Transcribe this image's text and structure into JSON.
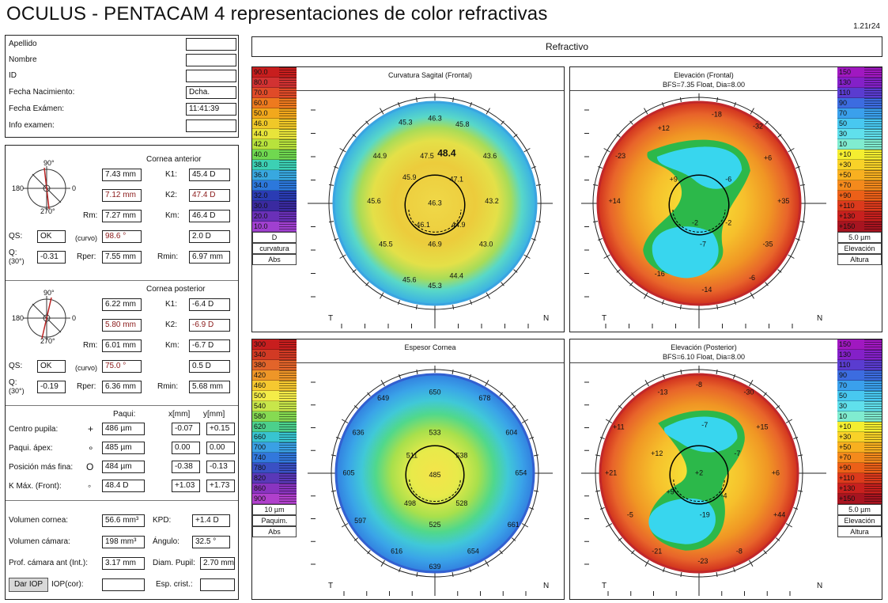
{
  "header": {
    "title": "OCULUS - PENTACAM  4 representaciones de color refractivas",
    "version": "1.21r24"
  },
  "patient": {
    "rows": [
      {
        "label": "Apellido",
        "value": ""
      },
      {
        "label": "Nombre",
        "value": ""
      },
      {
        "label": "ID",
        "value": ""
      },
      {
        "label": "Fecha Nacimiento:",
        "value": "Dcha."
      },
      {
        "label": "Fecha Exámen:",
        "value": "11:41:39"
      },
      {
        "label": "Info examen:",
        "value": ""
      }
    ]
  },
  "cornea_anterior": {
    "title": "Cornea anterior",
    "r1": "7.43 mm",
    "k1_label": "K1:",
    "k1": "45.4 D",
    "r2": "7.12 mm",
    "k2_label": "K2:",
    "k2": "47.4 D",
    "rm_label": "Rm:",
    "rm": "7.27 mm",
    "km_label": "Km:",
    "km": "46.4 D",
    "qs_label": "QS:",
    "qs": "OK",
    "curvo_label": "(curvo)",
    "axis": "98.6 °",
    "astig": "2.0 D",
    "q_label": "Q:",
    "q30_label": "(30°)",
    "q": "-0.31",
    "rper_label": "Rper:",
    "rper": "7.55 mm",
    "rmin_label": "Rmin:",
    "rmin": "6.97 mm"
  },
  "cornea_posterior": {
    "title": "Cornea posterior",
    "r1": "6.22 mm",
    "k1_label": "K1:",
    "k1": "-6.4 D",
    "r2": "5.80 mm",
    "k2_label": "K2:",
    "k2": "-6.9 D",
    "rm_label": "Rm:",
    "rm": "6.01 mm",
    "km_label": "Km:",
    "km": "-6.7 D",
    "qs_label": "QS:",
    "qs": "OK",
    "curvo_label": "(curvo)",
    "axis": "75.0 °",
    "astig": "0.5 D",
    "q_label": "Q:",
    "q30_label": "(30°)",
    "q": "-0.19",
    "rper_label": "Rper:",
    "rper": "6.36 mm",
    "rmin_label": "Rmin:",
    "rmin": "5.68 mm"
  },
  "pachy": {
    "col_paqui": "Paqui:",
    "col_x": "x[mm]",
    "col_y": "y[mm]",
    "rows": [
      {
        "label": "Centro pupila:",
        "sym": "+",
        "paqui": "486 µm",
        "x": "-0.07",
        "y": "+0.15"
      },
      {
        "label": "Paqui. ápex:",
        "sym": "∘",
        "paqui": "485 µm",
        "x": "0.00",
        "y": "0.00"
      },
      {
        "label": "Posición más fina:",
        "sym": "O",
        "paqui": "484 µm",
        "x": "-0.38",
        "y": "-0.13"
      },
      {
        "label": "K Máx. (Front):",
        "sym": "◦",
        "paqui": "48.4 D",
        "x": "+1.03",
        "y": "+1.73"
      }
    ]
  },
  "volumes": {
    "vol_cornea_label": "Volumen cornea:",
    "vol_cornea": "56.6 mm³",
    "kpd_label": "KPD:",
    "kpd": "+1.4 D",
    "vol_camara_label": "Volumen cámara:",
    "vol_camara": "198 mm³",
    "angulo_label": "Ángulo:",
    "angulo": "32.5 °",
    "prof_label": "Prof. cámara ant (Int.):",
    "prof": "3.17 mm",
    "diam_label": "Diam. Pupil:",
    "diam": "2.70 mm",
    "dar_iop": "Dar IOP",
    "iop_label": "IOP(cor):",
    "iop": "",
    "esp_label": "Esp. crist.:",
    "esp": ""
  },
  "compass": {
    "deg90": "90°",
    "deg0": "0",
    "deg180": "180",
    "deg270": "270°"
  },
  "refractivo": "Refractivo",
  "maps": {
    "sagital": {
      "title": "Curvatura Sagital (Frontal)",
      "subtitle": "",
      "scale": [
        "90.0",
        "80.0",
        "70.0",
        "60.0",
        "50.0",
        "46.0",
        "44.0",
        "42.0",
        "40.0",
        "38.0",
        "36.0",
        "34.0",
        "32.0",
        "30.0",
        "20.0",
        "10.0"
      ],
      "scale_colors": [
        "#c81e1e",
        "#d23232",
        "#e04b28",
        "#ee7a1e",
        "#f2a81c",
        "#f0c828",
        "#e8e43a",
        "#b8e23c",
        "#70d850",
        "#3cd0b4",
        "#38a8e0",
        "#2c78dc",
        "#2a3cb4",
        "#3a2aa0",
        "#6a30b8",
        "#a040d0"
      ],
      "foot": [
        "D",
        "curvatura",
        "Abs"
      ],
      "numbers": [
        "45.3",
        "46.3",
        "45.8",
        "44.9",
        "47.5",
        "48.4",
        "43.6",
        "45.9",
        "47.1",
        "45.6",
        "46.3",
        "43.2",
        "46.1",
        "44.9",
        "45.5",
        "46.9",
        "43.0",
        "45.6",
        "44.4",
        "45.3"
      ],
      "T": "T",
      "N": "N"
    },
    "elev_front": {
      "title": "Elevación (Frontal)",
      "subtitle": "BFS=7.35 Float, Dia=8.00",
      "scale": [
        "150",
        "130",
        "110",
        "90",
        "70",
        "50",
        "30",
        "10",
        "+10",
        "+30",
        "+50",
        "+70",
        "+90",
        "+110",
        "+130",
        "+150"
      ],
      "scale_colors": [
        "#a018c0",
        "#8420c8",
        "#5a3cd0",
        "#3c6ce0",
        "#3aa0ec",
        "#48c8f0",
        "#60e0ec",
        "#80ecd0",
        "#f4ee30",
        "#f8d228",
        "#f8b020",
        "#f48a1c",
        "#ec6018",
        "#dc3a1c",
        "#c8201e",
        "#a81420"
      ],
      "foot": [
        "5.0 µm",
        "Elevación",
        "Altura"
      ],
      "numbers": [
        "-18",
        "+12",
        "-32",
        "-23",
        "+9",
        "+6",
        "-6",
        "+14",
        "+35",
        "-2",
        "-2",
        "-35",
        "-16",
        "-7",
        "-14",
        "-6"
      ],
      "T": "T",
      "N": "N"
    },
    "espesor": {
      "title": "Espesor Cornea",
      "subtitle": "",
      "scale": [
        "300",
        "340",
        "380",
        "420",
        "460",
        "500",
        "540",
        "580",
        "620",
        "660",
        "700",
        "740",
        "780",
        "820",
        "860",
        "900"
      ],
      "scale_colors": [
        "#c81e1e",
        "#d23a24",
        "#e2642a",
        "#ee9628",
        "#f6c830",
        "#f4ec48",
        "#c8e64a",
        "#86da52",
        "#4cd08c",
        "#38c4d0",
        "#3aa0e4",
        "#3278dc",
        "#3a50c4",
        "#5a38b8",
        "#8a34c0",
        "#b040cc"
      ],
      "foot": [
        "10 µm",
        "Paquim.",
        "Abs"
      ],
      "numbers": [
        "649",
        "650",
        "678",
        "636",
        "533",
        "604",
        "511",
        "538",
        "605",
        "485",
        "654",
        "498",
        "528",
        "597",
        "525",
        "661",
        "616",
        "654",
        "639"
      ],
      "T": "T",
      "N": "N"
    },
    "elev_post": {
      "title": "Elevación (Posterior)",
      "subtitle": "BFS=6.10 Float, Dia=8.00",
      "scale": [
        "150",
        "130",
        "110",
        "90",
        "70",
        "50",
        "30",
        "10",
        "+10",
        "+30",
        "+50",
        "+70",
        "+90",
        "+110",
        "+130",
        "+150"
      ],
      "scale_colors": [
        "#a018c0",
        "#8420c8",
        "#5a3cd0",
        "#3c6ce0",
        "#3aa0ec",
        "#48c8f0",
        "#60e0ec",
        "#80ecd0",
        "#f4ee30",
        "#f8d228",
        "#f8b020",
        "#f48a1c",
        "#ec6018",
        "#dc3a1c",
        "#c8201e",
        "#a81420"
      ],
      "foot": [
        "5.0 µm",
        "Elevación",
        "Altura"
      ],
      "numbers": [
        "-8",
        "-13",
        "-30",
        "+11",
        "-7",
        "+15",
        "+12",
        "-7",
        "+21",
        "+2",
        "+6",
        "+9",
        "-4",
        "-5",
        "-19",
        "+44",
        "-21",
        "-23",
        "-8"
      ],
      "T": "T",
      "N": "N"
    }
  }
}
